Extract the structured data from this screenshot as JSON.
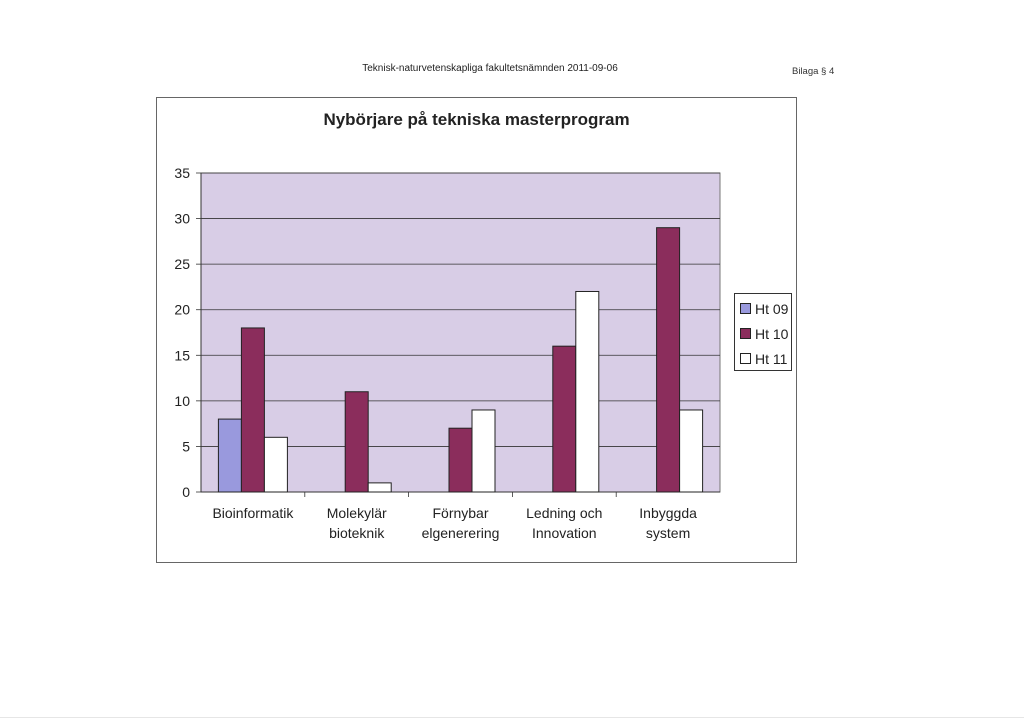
{
  "document": {
    "header": "Teknisk-naturvetenskapliga fakultetsnämnden 2011-09-06",
    "attachment": "Bilaga § 4"
  },
  "chart_data": {
    "type": "bar",
    "title": "Nybörjare på tekniska masterprogram",
    "xlabel": "",
    "ylabel": "",
    "ylim": [
      0,
      35
    ],
    "yticks": [
      0,
      5,
      10,
      15,
      20,
      25,
      30,
      35
    ],
    "grid": true,
    "legend_position": "right",
    "categories": [
      [
        "Bioinformatik"
      ],
      [
        "Molekylär",
        "bioteknik"
      ],
      [
        "Förnybar",
        "elgenerering"
      ],
      [
        "Ledning och",
        "Innovation"
      ],
      [
        "Inbyggda",
        "system"
      ]
    ],
    "series": [
      {
        "name": "Ht 09",
        "color": "#9999dd",
        "values": [
          8,
          0,
          0,
          0,
          0
        ]
      },
      {
        "name": "Ht 10",
        "color": "#8b2d5c",
        "values": [
          18,
          11,
          7,
          16,
          29
        ]
      },
      {
        "name": "Ht 11",
        "color": "#ffffff",
        "values": [
          6,
          1,
          9,
          22,
          9
        ]
      }
    ],
    "plot_background": "#d8cde6"
  }
}
